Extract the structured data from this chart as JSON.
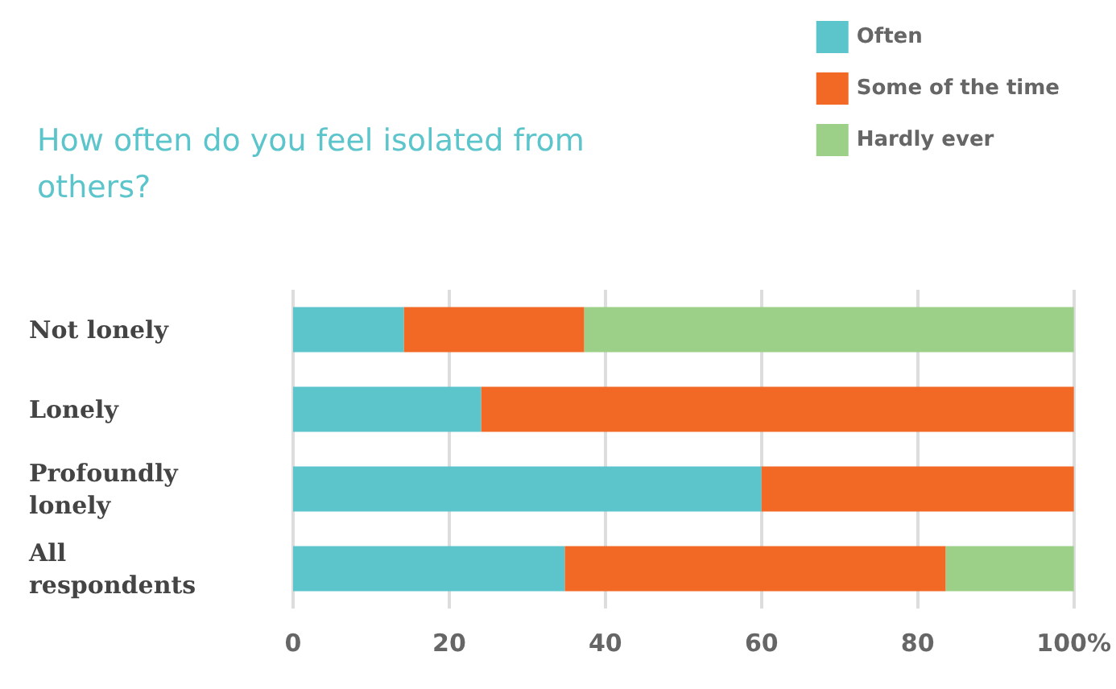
{
  "chart_data": {
    "type": "bar",
    "orientation": "horizontal",
    "stacked": true,
    "title": "How often do you feel isolated from others?",
    "categories": [
      "Not lonely",
      "Lonely",
      "Profoundly lonely",
      "All respondents"
    ],
    "series": [
      {
        "name": "Often",
        "color": "#5bc5cb",
        "values": [
          14.2,
          24.1,
          60,
          34.8
        ]
      },
      {
        "name": "Some of the time",
        "color": "#f26926",
        "values": [
          23.1,
          75.9,
          40,
          48.8
        ]
      },
      {
        "name": "Hardly ever",
        "color": "#9ccf87",
        "values": [
          62.7,
          null,
          null,
          16.4
        ]
      }
    ],
    "xlim": [
      0,
      100
    ],
    "xticks": [
      0,
      20,
      40,
      60,
      80,
      {
        "value": 100,
        "label": "100%"
      }
    ],
    "grid": "x",
    "legend": "top right"
  }
}
